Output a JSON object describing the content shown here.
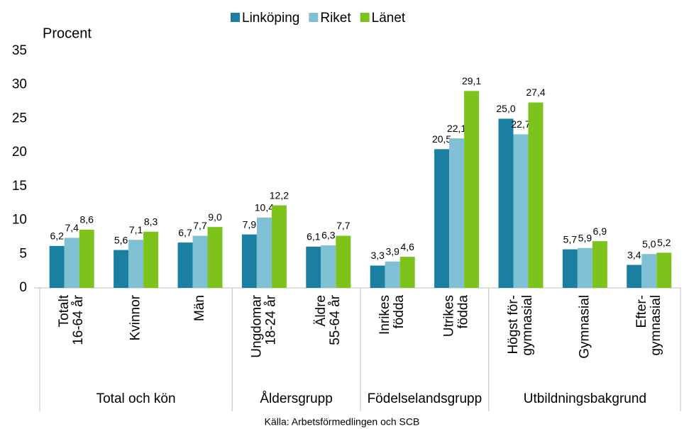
{
  "chart_data": {
    "type": "bar",
    "y_label": "Procent",
    "source": "Källa: Arbetsförmedlingen och SCB",
    "groups": [
      {
        "name": "Total och kön",
        "categories": [
          [
            "Totalt",
            "16-64 år"
          ],
          [
            "Kvinnor"
          ],
          [
            "Män"
          ]
        ]
      },
      {
        "name": "Åldersgrupp",
        "categories": [
          [
            "Ungdomar",
            "18-24 år"
          ],
          [
            "Äldre",
            "55-64 år"
          ]
        ]
      },
      {
        "name": "Födelselandsgrupp",
        "categories": [
          [
            "Inrikes",
            "födda"
          ],
          [
            "Utrikes",
            "födda"
          ]
        ]
      },
      {
        "name": "Utbildningsbakgrund",
        "categories": [
          [
            "Högst för-",
            "gymnasial"
          ],
          [
            "Gymnasial"
          ],
          [
            "Efter-",
            "gymnasial"
          ]
        ]
      }
    ],
    "series": [
      {
        "name": "Linköping",
        "color": "#1b7fa1",
        "values": [
          6.2,
          5.6,
          6.7,
          7.9,
          6.1,
          3.3,
          20.5,
          25.0,
          5.7,
          3.4
        ],
        "value_labels": [
          "6,2",
          "5,6",
          "6,7",
          "7,9",
          "6,1",
          "3,3",
          "20,5",
          "25,0",
          "5,7",
          "3,4"
        ]
      },
      {
        "name": "Riket",
        "color": "#80c0d4",
        "values": [
          7.4,
          7.1,
          7.7,
          10.4,
          6.3,
          3.9,
          22.1,
          22.7,
          5.9,
          5.0
        ],
        "value_labels": [
          "7,4",
          "7,1",
          "7,7",
          "10,4",
          "6,3",
          "3,9",
          "22,1",
          "22,7",
          "5,9",
          "5,0"
        ]
      },
      {
        "name": "Länet",
        "color": "#7dc31c",
        "values": [
          8.6,
          8.3,
          9.0,
          12.2,
          7.7,
          4.6,
          29.1,
          27.4,
          6.9,
          5.2
        ],
        "value_labels": [
          "8,6",
          "8,3",
          "9,0",
          "12,2",
          "7,7",
          "4,6",
          "29,1",
          "27,4",
          "6,9",
          "5,2"
        ]
      }
    ],
    "ylim": [
      0,
      35
    ],
    "yticks": [
      0,
      5,
      10,
      15,
      20,
      25,
      30,
      35
    ],
    "legend": "top"
  }
}
